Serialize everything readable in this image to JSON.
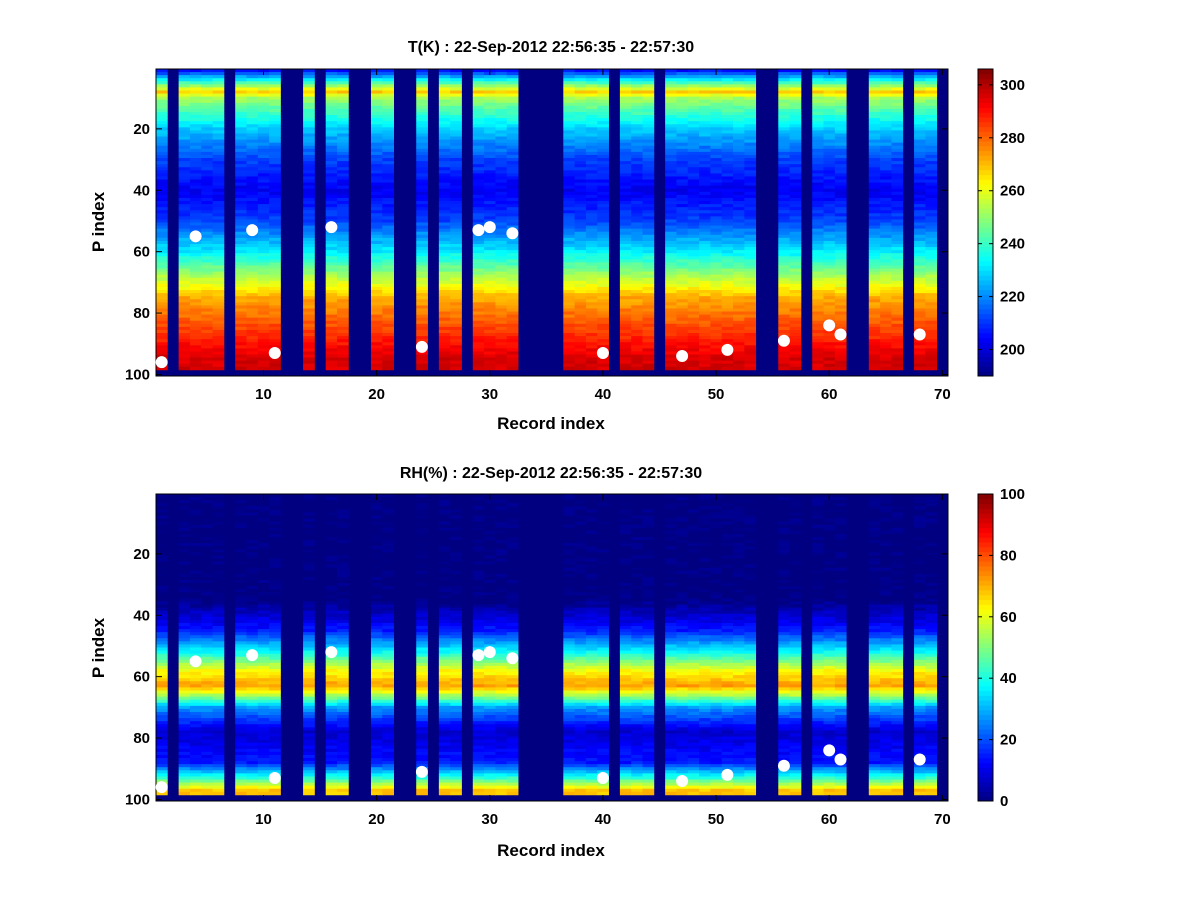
{
  "chart_data": [
    {
      "type": "heatmap",
      "title": "T(K) : 22-Sep-2012 22:56:35 - 22:57:30",
      "xlabel": "Record index",
      "ylabel": "P index",
      "xlim": [
        0.5,
        70.5
      ],
      "ylim": [
        0.5,
        100.5
      ],
      "y_reversed": true,
      "xticks": [
        10,
        20,
        30,
        40,
        50,
        60,
        70
      ],
      "yticks": [
        20,
        40,
        60,
        80,
        100
      ],
      "colorbar": {
        "min": 190,
        "max": 306,
        "ticks": [
          200,
          220,
          240,
          260,
          280,
          300
        ]
      },
      "colormap": "jet",
      "profile_p": [
        1,
        8,
        10,
        20,
        30,
        40,
        50,
        60,
        70,
        75,
        85,
        90,
        95
      ],
      "profile_values": [
        206,
        268,
        252,
        228,
        212,
        203,
        212,
        232,
        258,
        272,
        284,
        290,
        296
      ],
      "missing_records": [
        2,
        7,
        12,
        13,
        15,
        18,
        19,
        22,
        23,
        25,
        28,
        33,
        34,
        35,
        36,
        41,
        45,
        54,
        55,
        58,
        62,
        63,
        67,
        70
      ],
      "markers": [
        [
          1,
          96
        ],
        [
          4,
          55
        ],
        [
          9,
          53
        ],
        [
          11,
          93
        ],
        [
          16,
          52
        ],
        [
          24,
          91
        ],
        [
          29,
          53
        ],
        [
          30,
          52
        ],
        [
          32,
          54
        ],
        [
          40,
          93
        ],
        [
          47,
          94
        ],
        [
          51,
          92
        ],
        [
          56,
          89
        ],
        [
          60,
          84
        ],
        [
          61,
          87
        ],
        [
          68,
          87
        ]
      ]
    },
    {
      "type": "heatmap",
      "title": "RH(%) : 22-Sep-2012 22:56:35 - 22:57:30",
      "xlabel": "Record index",
      "ylabel": "P index",
      "xlim": [
        0.5,
        70.5
      ],
      "ylim": [
        0.5,
        100.5
      ],
      "y_reversed": true,
      "xticks": [
        10,
        20,
        30,
        40,
        50,
        60,
        70
      ],
      "yticks": [
        20,
        40,
        60,
        80,
        100
      ],
      "colorbar": {
        "min": 0,
        "max": 100,
        "ticks": [
          0,
          20,
          40,
          60,
          80,
          100
        ]
      },
      "colormap": "jet",
      "profile_p": [
        1,
        35,
        45,
        52,
        58,
        63,
        66,
        70,
        78,
        88,
        93,
        97
      ],
      "profile_values": [
        0,
        0,
        15,
        38,
        62,
        72,
        55,
        28,
        8,
        15,
        42,
        68
      ],
      "missing_records": [
        2,
        7,
        12,
        13,
        15,
        18,
        19,
        22,
        23,
        25,
        28,
        33,
        34,
        35,
        36,
        41,
        45,
        54,
        55,
        58,
        62,
        63,
        67,
        70
      ],
      "markers": [
        [
          1,
          96
        ],
        [
          4,
          55
        ],
        [
          9,
          53
        ],
        [
          11,
          93
        ],
        [
          16,
          52
        ],
        [
          24,
          91
        ],
        [
          29,
          53
        ],
        [
          30,
          52
        ],
        [
          32,
          54
        ],
        [
          40,
          93
        ],
        [
          47,
          94
        ],
        [
          51,
          92
        ],
        [
          56,
          89
        ],
        [
          60,
          84
        ],
        [
          61,
          87
        ],
        [
          68,
          87
        ]
      ]
    }
  ]
}
